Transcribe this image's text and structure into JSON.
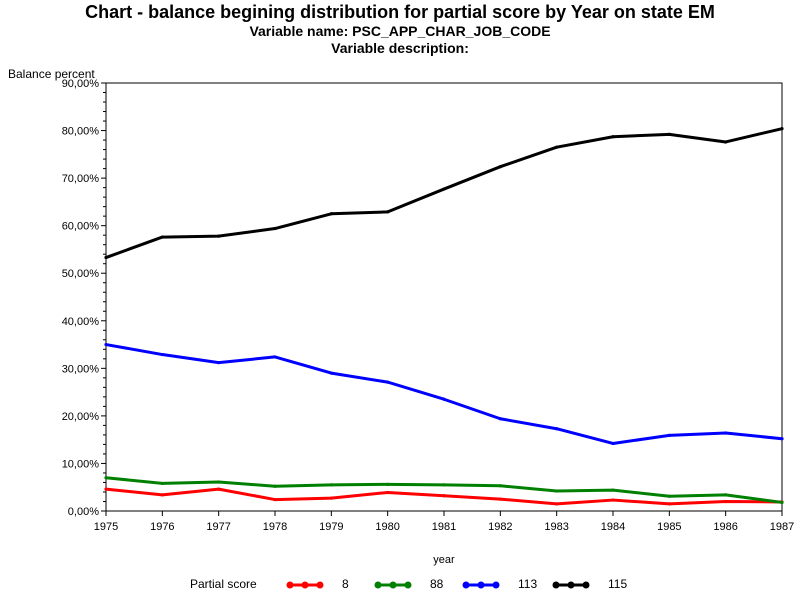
{
  "chart_data": {
    "type": "line",
    "title": "Chart - balance begining distribution for partial score by Year on state EM",
    "subtitle_variable_name": "Variable name: PSC_APP_CHAR_JOB_CODE",
    "subtitle_variable_description": "Variable description:",
    "xlabel": "year",
    "ylabel": "Balance percent",
    "x": [
      1975,
      1976,
      1977,
      1978,
      1979,
      1980,
      1981,
      1982,
      1983,
      1984,
      1985,
      1986,
      1987
    ],
    "x_tick_labels": [
      "1975",
      "1976",
      "1977",
      "1978",
      "1979",
      "1980",
      "1981",
      "1982",
      "1983",
      "1984",
      "1985",
      "1986",
      "1987"
    ],
    "xlim": [
      1975,
      1987
    ],
    "ylim": [
      0,
      90
    ],
    "y_ticks": [
      0,
      10,
      20,
      30,
      40,
      50,
      60,
      70,
      80,
      90
    ],
    "y_tick_labels": [
      "0,00%",
      "10,00%",
      "20,00%",
      "30,00%",
      "40,00%",
      "50,00%",
      "60,00%",
      "70,00%",
      "80,00%",
      "90,00%"
    ],
    "grid": false,
    "legend_placement": "bottom",
    "legend_title": "Partial score",
    "series": [
      {
        "name": "8",
        "color": "#ff0000",
        "values": [
          4.6,
          3.4,
          4.6,
          2.4,
          2.7,
          3.9,
          3.2,
          2.5,
          1.5,
          2.3,
          1.5,
          2.0,
          1.9
        ]
      },
      {
        "name": "88",
        "color": "#008000",
        "values": [
          7.0,
          5.8,
          6.1,
          5.2,
          5.5,
          5.6,
          5.5,
          5.3,
          4.2,
          4.4,
          3.1,
          3.4,
          1.8
        ]
      },
      {
        "name": "113",
        "color": "#0000ff",
        "values": [
          35.0,
          32.9,
          31.2,
          32.4,
          29.0,
          27.1,
          23.5,
          19.4,
          17.3,
          14.2,
          15.9,
          16.4,
          15.2
        ]
      },
      {
        "name": "115",
        "color": "#000000",
        "values": [
          53.3,
          57.6,
          57.8,
          59.4,
          62.5,
          62.9,
          67.7,
          72.4,
          76.5,
          78.7,
          79.2,
          77.6,
          80.4
        ]
      }
    ]
  }
}
